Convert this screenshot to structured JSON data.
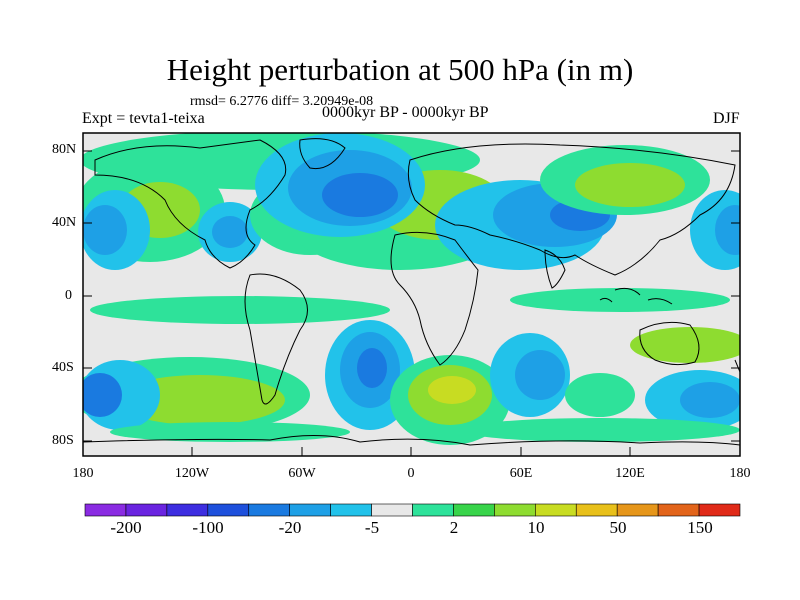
{
  "header": {
    "title": "Height perturbation at 500 hPa (in m)",
    "stats": "rmsd= 6.2776 diff= 3.20949e-08",
    "experiment": "Expt = tevta1-teixa",
    "period": "0000kyr BP - 0000kyr BP",
    "season": "DJF"
  },
  "axes": {
    "y_labels": [
      "80N",
      "40N",
      "0",
      "40S",
      "80S"
    ],
    "x_labels": [
      "180",
      "120W",
      "60W",
      "0",
      "60E",
      "120E",
      "180"
    ]
  },
  "colorbar": {
    "labels": [
      "-200",
      "-100",
      "-20",
      "-5",
      "2",
      "10",
      "50",
      "150"
    ],
    "colors": [
      "#8a2be2",
      "#6a24e0",
      "#3d2ee0",
      "#1e50dc",
      "#1a7ae0",
      "#1ea0e6",
      "#22c2ea",
      "#e8e8e8",
      "#2ee29a",
      "#38d44a",
      "#8edc30",
      "#c8dc22",
      "#e8c01a",
      "#e6961a",
      "#e2641a",
      "#e02a18"
    ]
  },
  "map": {
    "background_color": "#e8e8e8",
    "land_outline_color": "#000000"
  }
}
